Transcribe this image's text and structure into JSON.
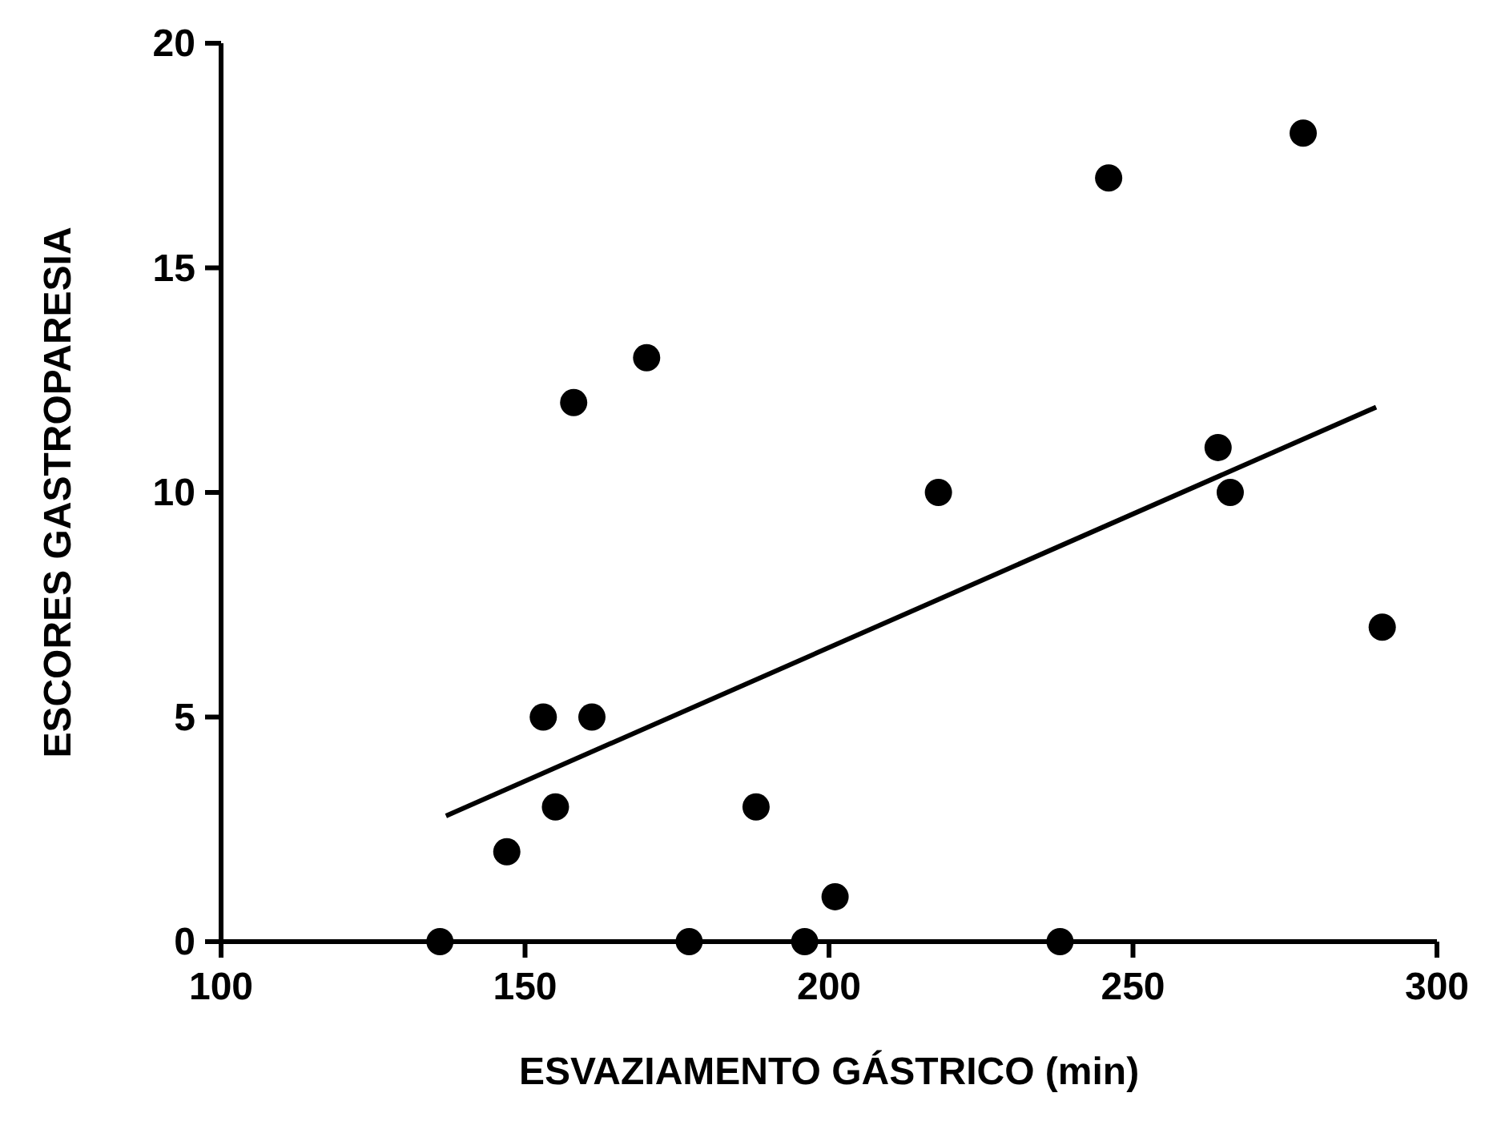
{
  "chart_data": {
    "type": "scatter",
    "xlabel": "ESVAZIAMENTO GÁSTRICO (min)",
    "ylabel": "ESCORES GASTROPARESIA",
    "xlim": [
      100,
      300
    ],
    "ylim": [
      0,
      20
    ],
    "xticks": [
      100,
      150,
      200,
      250,
      300
    ],
    "yticks": [
      0,
      5,
      10,
      15,
      20
    ],
    "grid": false,
    "marker": "circle",
    "series": [
      {
        "color": "#000000",
        "x": [
          136,
          147,
          153,
          155,
          158,
          161,
          170,
          177,
          188,
          196,
          201,
          218,
          238,
          246,
          264,
          266,
          278,
          291
        ],
        "values": [
          0,
          2,
          5,
          3,
          12,
          5,
          13,
          0,
          3,
          0,
          1,
          10,
          0,
          17,
          11,
          10,
          18,
          7
        ]
      },
      {
        "type": "line",
        "color": "#000000",
        "line_style": "solid",
        "marker": "none",
        "x": [
          137,
          290
        ],
        "values": [
          2.8,
          11.9
        ]
      }
    ]
  }
}
